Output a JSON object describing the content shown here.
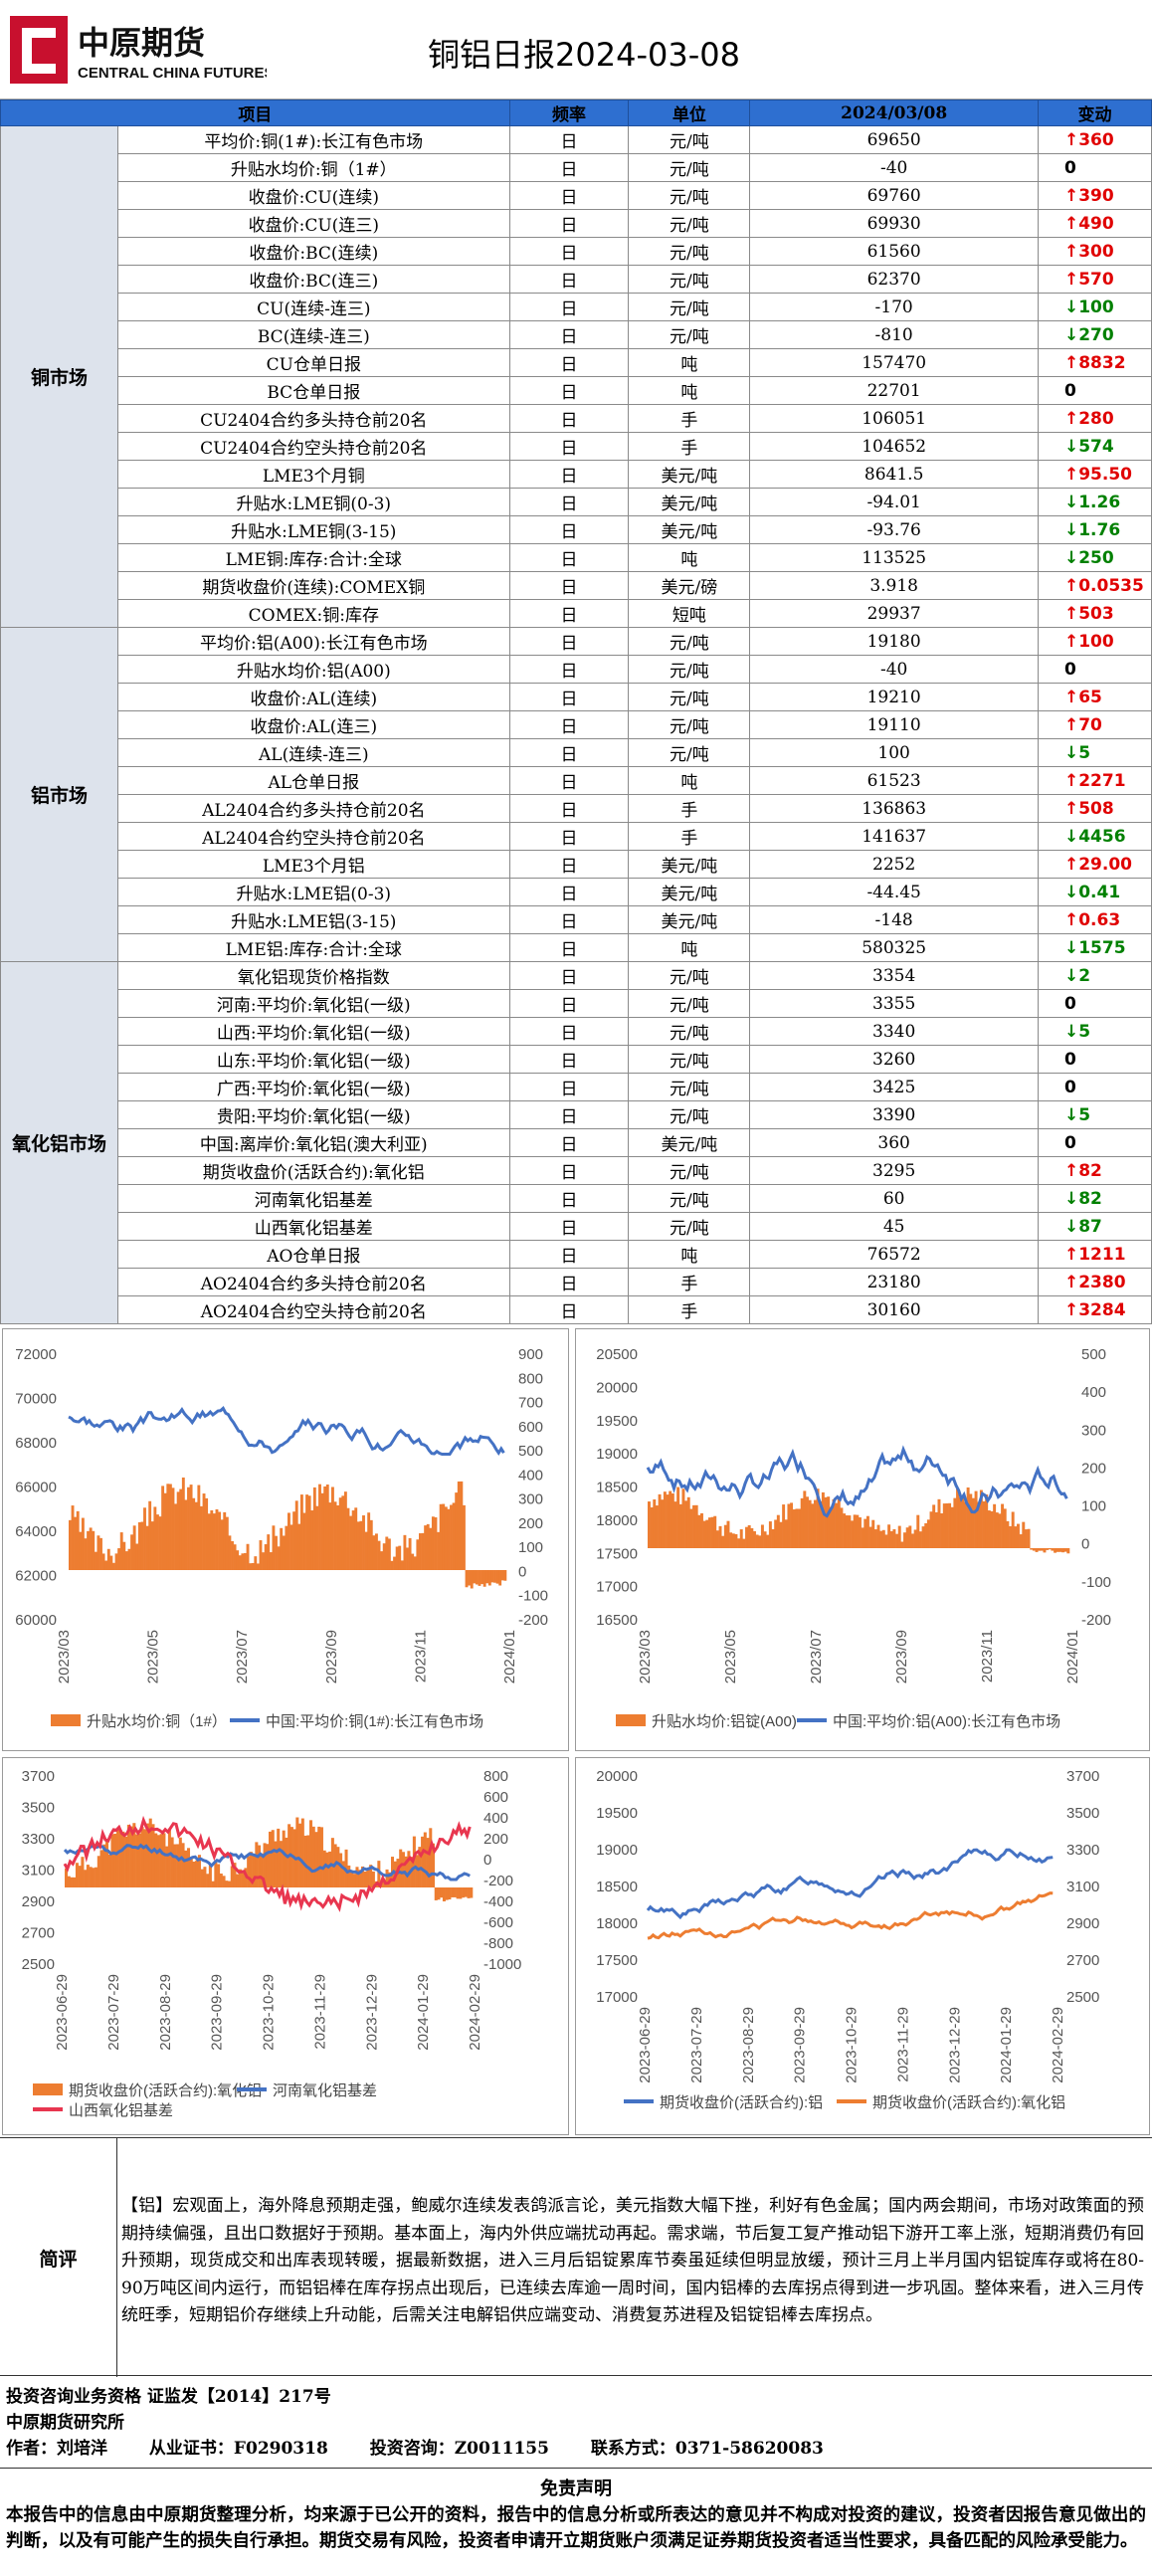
{
  "header": {
    "logo_cn": "中原期货",
    "logo_en": "CENTRAL CHINA FUTURES",
    "title": "铜铝日报2024-03-08",
    "brand_color": "#c8102e"
  },
  "table": {
    "headers": [
      "项目",
      "频率",
      "单位",
      "2024/03/08",
      "变动"
    ],
    "sections": [
      {
        "name": "铜市场",
        "rows": [
          [
            "平均价:铜(1#):长江有色市场",
            "日",
            "元/吨",
            "69650",
            "↑360",
            "up"
          ],
          [
            "升贴水均价:铜（1#）",
            "日",
            "元/吨",
            "-40",
            "0",
            "flat"
          ],
          [
            "收盘价:CU(连续)",
            "日",
            "元/吨",
            "69760",
            "↑390",
            "up"
          ],
          [
            "收盘价:CU(连三)",
            "日",
            "元/吨",
            "69930",
            "↑490",
            "up"
          ],
          [
            "收盘价:BC(连续)",
            "日",
            "元/吨",
            "61560",
            "↑300",
            "up"
          ],
          [
            "收盘价:BC(连三)",
            "日",
            "元/吨",
            "62370",
            "↑570",
            "up"
          ],
          [
            "CU(连续-连三)",
            "日",
            "元/吨",
            "-170",
            "↓100",
            "dn"
          ],
          [
            "BC(连续-连三)",
            "日",
            "元/吨",
            "-810",
            "↓270",
            "dn"
          ],
          [
            "CU仓单日报",
            "日",
            "吨",
            "157470",
            "↑8832",
            "up"
          ],
          [
            "BC仓单日报",
            "日",
            "吨",
            "22701",
            "0",
            "flat"
          ],
          [
            "CU2404合约多头持仓前20名",
            "日",
            "手",
            "106051",
            "↑280",
            "up"
          ],
          [
            "CU2404合约空头持仓前20名",
            "日",
            "手",
            "104652",
            "↓574",
            "dn"
          ],
          [
            "LME3个月铜",
            "日",
            "美元/吨",
            "8641.5",
            "↑95.50",
            "up"
          ],
          [
            "升贴水:LME铜(0-3)",
            "日",
            "美元/吨",
            "-94.01",
            "↓1.26",
            "dn"
          ],
          [
            "升贴水:LME铜(3-15)",
            "日",
            "美元/吨",
            "-93.76",
            "↓1.76",
            "dn"
          ],
          [
            "LME铜:库存:合计:全球",
            "日",
            "吨",
            "113525",
            "↓250",
            "dn"
          ],
          [
            "期货收盘价(连续):COMEX铜",
            "日",
            "美元/磅",
            "3.918",
            "↑0.0535",
            "up"
          ],
          [
            "COMEX:铜:库存",
            "日",
            "短吨",
            "29937",
            "↑503",
            "up"
          ]
        ]
      },
      {
        "name": "铝市场",
        "rows": [
          [
            "平均价:铝(A00):长江有色市场",
            "日",
            "元/吨",
            "19180",
            "↑100",
            "up"
          ],
          [
            "升贴水均价:铝(A00)",
            "日",
            "元/吨",
            "-40",
            "0",
            "flat"
          ],
          [
            "收盘价:AL(连续)",
            "日",
            "元/吨",
            "19210",
            "↑65",
            "up"
          ],
          [
            "收盘价:AL(连三)",
            "日",
            "元/吨",
            "19110",
            "↑70",
            "up"
          ],
          [
            "AL(连续-连三)",
            "日",
            "元/吨",
            "100",
            "↓5",
            "dn"
          ],
          [
            "AL仓单日报",
            "日",
            "吨",
            "61523",
            "↑2271",
            "up"
          ],
          [
            "AL2404合约多头持仓前20名",
            "日",
            "手",
            "136863",
            "↑508",
            "up"
          ],
          [
            "AL2404合约空头持仓前20名",
            "日",
            "手",
            "141637",
            "↓4456",
            "dn"
          ],
          [
            "LME3个月铝",
            "日",
            "美元/吨",
            "2252",
            "↑29.00",
            "up"
          ],
          [
            "升贴水:LME铝(0-3)",
            "日",
            "美元/吨",
            "-44.45",
            "↓0.41",
            "dn"
          ],
          [
            "升贴水:LME铝(3-15)",
            "日",
            "美元/吨",
            "-148",
            "↑0.63",
            "up"
          ],
          [
            "LME铝:库存:合计:全球",
            "日",
            "吨",
            "580325",
            "↓1575",
            "dn"
          ]
        ]
      },
      {
        "name": "氧化铝市场",
        "rows": [
          [
            "氧化铝现货价格指数",
            "日",
            "元/吨",
            "3354",
            "↓2",
            "dn"
          ],
          [
            "河南:平均价:氧化铝(一级)",
            "日",
            "元/吨",
            "3355",
            "0",
            "flat"
          ],
          [
            "山西:平均价:氧化铝(一级)",
            "日",
            "元/吨",
            "3340",
            "↓5",
            "dn"
          ],
          [
            "山东:平均价:氧化铝(一级)",
            "日",
            "元/吨",
            "3260",
            "0",
            "flat"
          ],
          [
            "广西:平均价:氧化铝(一级)",
            "日",
            "元/吨",
            "3425",
            "0",
            "flat"
          ],
          [
            "贵阳:平均价:氧化铝(一级)",
            "日",
            "元/吨",
            "3390",
            "↓5",
            "dn"
          ],
          [
            "中国:离岸价:氧化铝(澳大利亚)",
            "日",
            "美元/吨",
            "360",
            "0",
            "flat"
          ],
          [
            "期货收盘价(活跃合约):氧化铝",
            "日",
            "元/吨",
            "3295",
            "↑82",
            "up"
          ],
          [
            "河南氧化铝基差",
            "日",
            "元/吨",
            "60",
            "↓82",
            "dn"
          ],
          [
            "山西氧化铝基差",
            "日",
            "元/吨",
            "45",
            "↓87",
            "dn"
          ],
          [
            "AO仓单日报",
            "日",
            "吨",
            "76572",
            "↑1211",
            "up"
          ],
          [
            "AO2404合约多头持仓前20名",
            "日",
            "手",
            "23180",
            "↑2380",
            "up"
          ],
          [
            "AO2404合约空头持仓前20名",
            "日",
            "手",
            "30160",
            "↑3284",
            "up"
          ]
        ]
      }
    ]
  },
  "charts": {
    "copper": {
      "yl": [
        "72000",
        "70000",
        "68000",
        "66000",
        "64000",
        "62000",
        "60000"
      ],
      "yr": [
        "900",
        "800",
        "700",
        "600",
        "500",
        "400",
        "300",
        "200",
        "100",
        "0",
        "-100",
        "-200"
      ],
      "x": [
        "2023/03",
        "2023/05",
        "2023/07",
        "2023/09",
        "2023/11",
        "2024/01"
      ],
      "legend": [
        "升贴水均价:铜（1#）",
        "中国:平均价:铜(1#):长江有色市场"
      ],
      "colors": [
        "#ed7d31",
        "#4472c4"
      ]
    },
    "aluminum": {
      "yl": [
        "20500",
        "20000",
        "19500",
        "19000",
        "18500",
        "18000",
        "17500",
        "17000",
        "16500"
      ],
      "yr": [
        "500",
        "400",
        "300",
        "200",
        "100",
        "0",
        "-100",
        "-200"
      ],
      "x": [
        "2023/03",
        "2023/05",
        "2023/07",
        "2023/09",
        "2023/11",
        "2024/01"
      ],
      "legend": [
        "升贴水均价:铝锭(A00)",
        "中国:平均价:铝(A00):长江有色市场"
      ],
      "colors": [
        "#ed7d31",
        "#4472c4"
      ]
    },
    "alumina_basis": {
      "yl": [
        "3700",
        "3500",
        "3300",
        "3100",
        "2900",
        "2700",
        "2500"
      ],
      "yr": [
        "800",
        "600",
        "400",
        "200",
        "0",
        "-200",
        "-400",
        "-600",
        "-800",
        "-1000"
      ],
      "x": [
        "2023-06-29",
        "2023-07-29",
        "2023-08-29",
        "2023-09-29",
        "2023-10-29",
        "2023-11-29",
        "2023-12-29",
        "2024-01-29",
        "2024-02-29"
      ],
      "legend": [
        "期货收盘价(活跃合约):氧化铝",
        "河南氧化铝基差",
        "山西氧化铝基差"
      ],
      "colors": [
        "#ed7d31",
        "#4472c4",
        "#e8364f"
      ]
    },
    "al_vs_alumina": {
      "yl": [
        "20000",
        "19500",
        "19000",
        "18500",
        "18000",
        "17500",
        "17000"
      ],
      "yr": [
        "3700",
        "3500",
        "3300",
        "3100",
        "2900",
        "2700",
        "2500"
      ],
      "x": [
        "2023-06-29",
        "2023-07-29",
        "2023-08-29",
        "2023-09-29",
        "2023-10-29",
        "2023-11-29",
        "2023-12-29",
        "2024-01-29",
        "2024-02-29"
      ],
      "legend": [
        "期货收盘价(活跃合约):铝",
        "期货收盘价(活跃合约):氧化铝"
      ],
      "colors": [
        "#4472c4",
        "#ed7d31"
      ]
    }
  },
  "comment": {
    "label": "简评",
    "text": "【铝】宏观面上，海外降息预期走强，鲍威尔连续发表鸽派言论，美元指数大幅下挫，利好有色金属；国内两会期间，市场对政策面的预期持续偏强，且出口数据好于预期。基本面上，海内外供应端扰动再起。需求端，节后复工复产推动铝下游开工率上涨，短期消费仍有回升预期，现货成交和出库表现转暖，据最新数据，进入三月后铝锭累库节奏虽延续但明显放缓，预计三月上半月国内铝锭库存或将在80-90万吨区间内运行，而铝铝棒在库存拐点出现后，已连续去库逾一周时间，国内铝棒的去库拐点得到进一步巩固。整体来看，进入三月传统旺季，短期铝价存继续上升动能，后需关注电解铝供应端变动、消费复苏进程及铝锭铝棒去库拐点。"
  },
  "footer": {
    "line1": "投资咨询业务资格  证监发【2014】217号",
    "line2": "中原期货研究所",
    "author_label": "作者：",
    "author": "刘培洋",
    "cert_label": "从业证书：",
    "cert": "F0290318",
    "advisor_label": "投资咨询：",
    "advisor": "Z0011155",
    "contact_label": "联系方式：",
    "contact": "0371-58620083"
  },
  "disclaimer": {
    "title": "免责声明",
    "text": "本报告中的信息由中原期货整理分析，均来源于已公开的资料，报告中的信息分析或所表达的意见并不构成对投资的建议，投资者因报告意见做出的判断，以及有可能产生的损失自行承担。期货交易有风险，投资者申请开立期货账户须满足证券期货投资者适当性要求，具备匹配的风险承受能力。"
  }
}
